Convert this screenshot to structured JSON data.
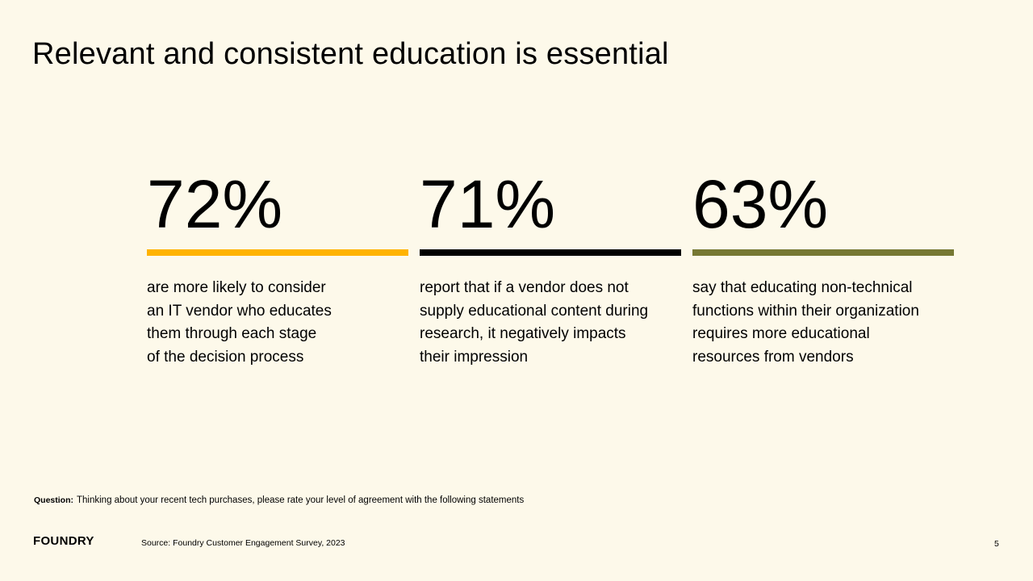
{
  "slide": {
    "title": "Relevant and consistent education is essential",
    "stats": [
      {
        "value": "72%",
        "color": "#ffb300",
        "text": "are more likely to consider\nan IT vendor who educates\nthem through  each stage\nof the decision process"
      },
      {
        "value": "71%",
        "color": "#000000",
        "text": "report that if a vendor does not\nsupply educational content during\nresearch, it negatively impacts\ntheir impression"
      },
      {
        "value": "63%",
        "color": "#767833",
        "text": "say that educating non-technical\nfunctions within their organization\nrequires more educational\nresources from vendors"
      }
    ],
    "question_label": "Question:",
    "question_text": "Thinking about your recent tech purchases, please rate your level of agreement with the following statements",
    "logo": "FOUNDRY",
    "source": "Source: Foundry Customer Engagement  Survey, 2023",
    "page_number": "5"
  }
}
